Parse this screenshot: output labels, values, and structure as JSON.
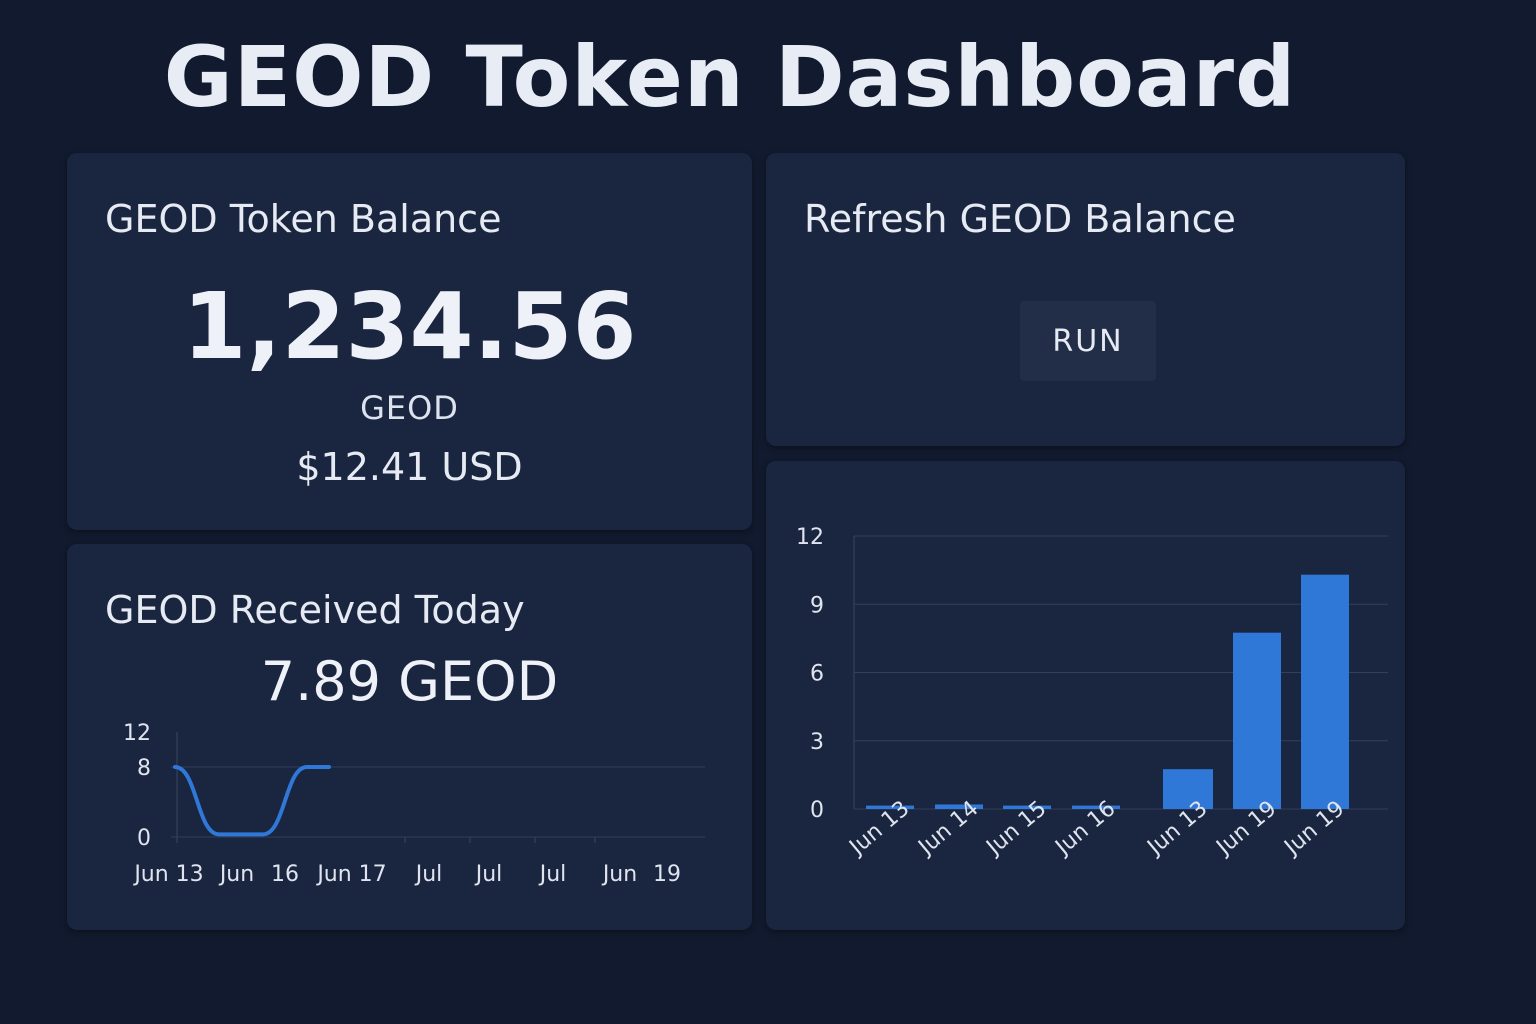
{
  "header": {
    "title": "GEOD Token Dashboard"
  },
  "balance": {
    "title": "GEOD Token Balance",
    "value": "1,234.56",
    "unit": "GEOD",
    "usd": "$12.41 USD"
  },
  "refresh": {
    "title": "Refresh GEOD Balance",
    "button_label": "RUN"
  },
  "received": {
    "title": "GEOD Received Today",
    "value": "7.89 GEOD"
  },
  "colors": {
    "accent": "#2f78d8",
    "background": "#111a2e",
    "card": "#1a2540"
  },
  "chart_data": [
    {
      "type": "line",
      "x_tick_labels": [
        "Jun 13",
        "Jun",
        "16",
        "Jun 17",
        "Jul",
        "Jul",
        "Jul",
        "Jun",
        "19"
      ],
      "y_ticks": [
        0,
        8,
        12
      ],
      "ylim": [
        0,
        12
      ],
      "grid": true,
      "series": [
        {
          "x": [
            0,
            1,
            2,
            3
          ],
          "values": [
            8,
            0.3,
            0.3,
            8
          ]
        }
      ]
    },
    {
      "type": "bar",
      "categories": [
        "Jun 13",
        "Jun 14",
        "Jun 15",
        "Jun 16",
        "Jun 13",
        "Jun 19",
        "Jun 19"
      ],
      "values": [
        0.15,
        0.2,
        0.15,
        0.15,
        1.75,
        7.75,
        10.3
      ],
      "y_ticks": [
        0,
        3,
        6,
        9,
        12
      ],
      "ylim": [
        0,
        12
      ],
      "grid": true
    }
  ]
}
